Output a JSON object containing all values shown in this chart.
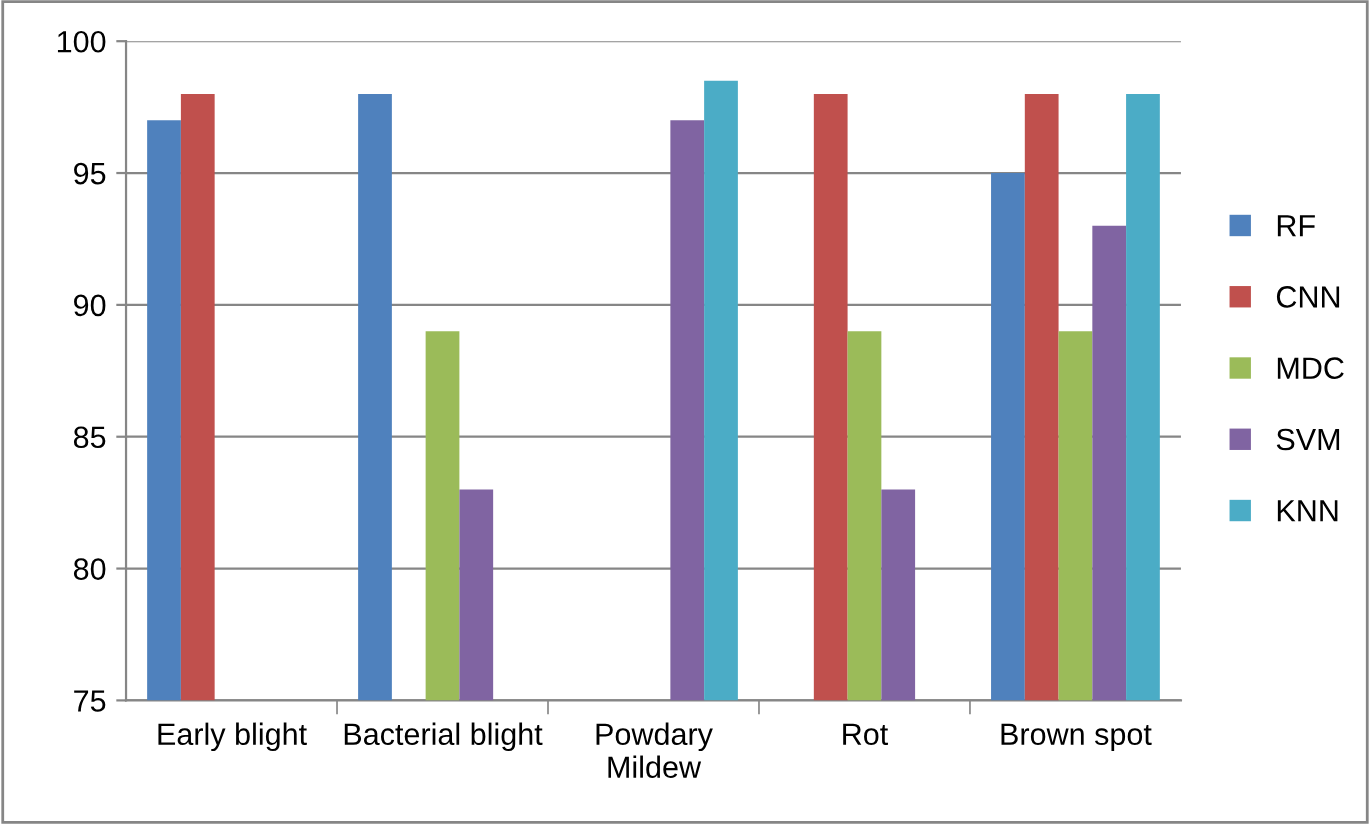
{
  "chart_data": {
    "type": "bar",
    "categories": [
      "Early blight",
      "Bacterial blight",
      "Powdary\nMildew",
      "Rot",
      "Brown spot"
    ],
    "series": [
      {
        "name": "RF",
        "color": "#4f81bd",
        "values": [
          97,
          98,
          null,
          null,
          95
        ]
      },
      {
        "name": "CNN",
        "color": "#c0504d",
        "values": [
          98,
          null,
          null,
          98,
          98
        ]
      },
      {
        "name": "MDC",
        "color": "#9bbb59",
        "values": [
          null,
          89,
          null,
          89,
          89
        ]
      },
      {
        "name": "SVM",
        "color": "#8064a2",
        "values": [
          null,
          83,
          97,
          83,
          93
        ]
      },
      {
        "name": "KNN",
        "color": "#4bacc6",
        "values": [
          null,
          null,
          98.5,
          null,
          98
        ]
      }
    ],
    "ylim": [
      75,
      100
    ],
    "yticks": [
      75,
      80,
      85,
      90,
      95,
      100
    ],
    "grid": "y",
    "legend": "right"
  }
}
